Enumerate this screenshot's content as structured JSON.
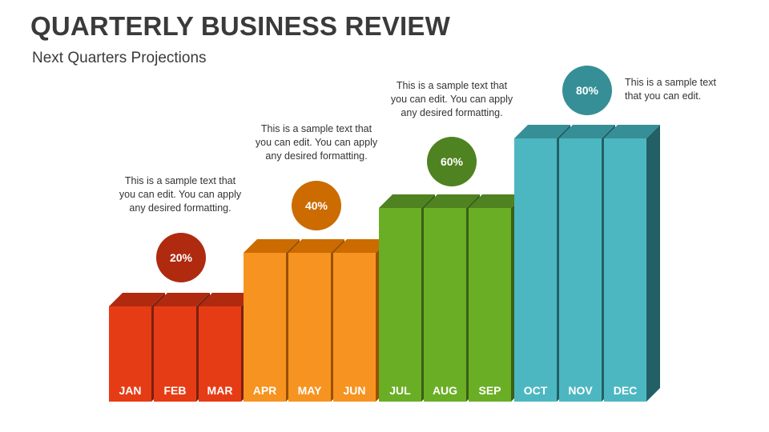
{
  "title": "QUARTERLY BUSINESS REVIEW",
  "subtitle": "Next Quarters Projections",
  "chart_data": {
    "type": "bar",
    "categories": [
      "JAN",
      "FEB",
      "MAR",
      "APR",
      "MAY",
      "JUN",
      "JUL",
      "AUG",
      "SEP",
      "OCT",
      "NOV",
      "DEC"
    ],
    "quarters": [
      {
        "label": "20%",
        "value": 20,
        "months": [
          "JAN",
          "FEB",
          "MAR"
        ],
        "front": "#E63C16",
        "top": "#B02A10",
        "side": "#7A2010",
        "note": "This is a sample text that you can edit. You can apply any desired formatting."
      },
      {
        "label": "40%",
        "value": 40,
        "months": [
          "APR",
          "MAY",
          "JUN"
        ],
        "front": "#F79320",
        "top": "#CC6B00",
        "side": "#9A5000",
        "note": "This is a sample text that you can edit. You can apply any desired formatting."
      },
      {
        "label": "60%",
        "value": 60,
        "months": [
          "JUL",
          "AUG",
          "SEP"
        ],
        "front": "#6AAE25",
        "top": "#4F8220",
        "side": "#3A6015",
        "note": "This is a sample text that you can edit. You can apply any desired formatting."
      },
      {
        "label": "80%",
        "value": 80,
        "months": [
          "OCT",
          "NOV",
          "DEC"
        ],
        "front": "#4DB7C1",
        "top": "#368F96",
        "side": "#226066",
        "note": "This is a sample text that you can edit."
      }
    ]
  }
}
